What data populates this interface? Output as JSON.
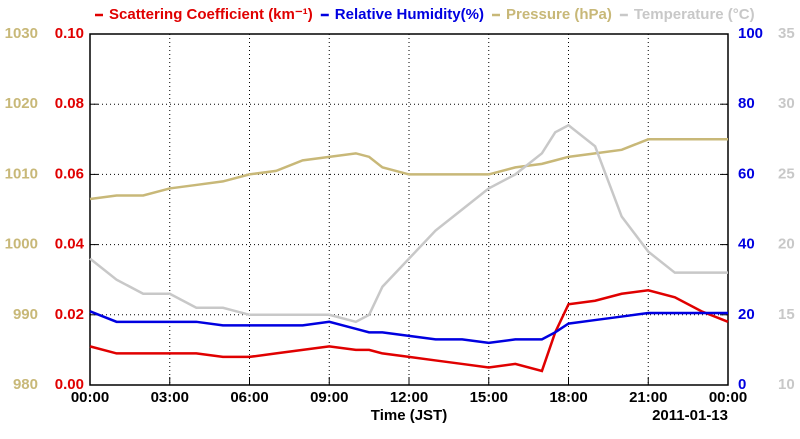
{
  "chart_data": {
    "type": "line",
    "x_label": "Time (JST)",
    "date_label": "2011-01-13",
    "xlim": [
      0,
      24
    ],
    "xticks": [
      {
        "value": 0,
        "label": "00:00"
      },
      {
        "value": 3,
        "label": "03:00"
      },
      {
        "value": 6,
        "label": "06:00"
      },
      {
        "value": 9,
        "label": "09:00"
      },
      {
        "value": 12,
        "label": "12:00"
      },
      {
        "value": 15,
        "label": "15:00"
      },
      {
        "value": 18,
        "label": "18:00"
      },
      {
        "value": 21,
        "label": "21:00"
      },
      {
        "value": 24,
        "label": "00:00"
      }
    ],
    "grid": true,
    "x": [
      0,
      1,
      2,
      3,
      4,
      5,
      6,
      7,
      8,
      9,
      10,
      10.5,
      11,
      12,
      13,
      14,
      15,
      16,
      17,
      17.5,
      18,
      19,
      20,
      21,
      22,
      23,
      24
    ],
    "series": [
      {
        "name": "Pressure (hPa)",
        "color": "#c8b878",
        "side": "left",
        "ylim": [
          980,
          1030
        ],
        "yticks": [
          980,
          990,
          1000,
          1010,
          1020,
          1030
        ],
        "values": [
          1006.5,
          1007,
          1007,
          1008,
          1008.5,
          1009,
          1010,
          1010.5,
          1012,
          1012.5,
          1013,
          1012.5,
          1011,
          1010,
          1010,
          1010,
          1010,
          1011,
          1011.5,
          1012,
          1012.5,
          1013,
          1013.5,
          1015,
          1015,
          1015,
          1015
        ]
      },
      {
        "name": "Scattering Coefficient (km⁻¹)",
        "color": "#e00000",
        "side": "left",
        "ylim": [
          0,
          0.1
        ],
        "yticks": [
          {
            "value": 0,
            "label": "0.00"
          },
          {
            "value": 0.02,
            "label": "0.02"
          },
          {
            "value": 0.04,
            "label": "0.04"
          },
          {
            "value": 0.06,
            "label": "0.06"
          },
          {
            "value": 0.08,
            "label": "0.08"
          },
          {
            "value": 0.1,
            "label": "0.10"
          }
        ],
        "values": [
          0.011,
          0.009,
          0.009,
          0.009,
          0.009,
          0.008,
          0.008,
          0.009,
          0.01,
          0.011,
          0.01,
          0.01,
          0.009,
          0.008,
          0.007,
          0.006,
          0.005,
          0.006,
          0.004,
          0.015,
          0.023,
          0.024,
          0.026,
          0.027,
          0.025,
          0.021,
          0.018
        ]
      },
      {
        "name": "Relative Humidity(%)",
        "color": "#0000e0",
        "side": "right",
        "ylim": [
          0,
          100
        ],
        "yticks": [
          0,
          20,
          40,
          60,
          80,
          100
        ],
        "values": [
          21,
          18,
          18,
          18,
          18,
          17,
          17,
          17,
          17,
          18,
          16,
          15,
          15,
          14,
          13,
          13,
          12,
          13,
          13,
          15,
          17.5,
          18.5,
          19.5,
          20.5,
          20.5,
          20.5,
          20.5
        ]
      },
      {
        "name": "Temperature (°C)",
        "color": "#c8c8c8",
        "side": "right",
        "ylim": [
          10,
          35
        ],
        "yticks": [
          10,
          15,
          20,
          25,
          30,
          35
        ],
        "values": [
          19,
          17.5,
          16.5,
          16.5,
          15.5,
          15.5,
          15,
          15,
          15,
          15,
          14.5,
          15,
          17,
          19,
          21,
          22.5,
          24,
          25,
          26.5,
          28,
          28.5,
          27,
          22,
          19.5,
          18,
          18,
          18
        ]
      }
    ],
    "legend_order": [
      1,
      2,
      0,
      3
    ],
    "grid_axis": 1
  }
}
